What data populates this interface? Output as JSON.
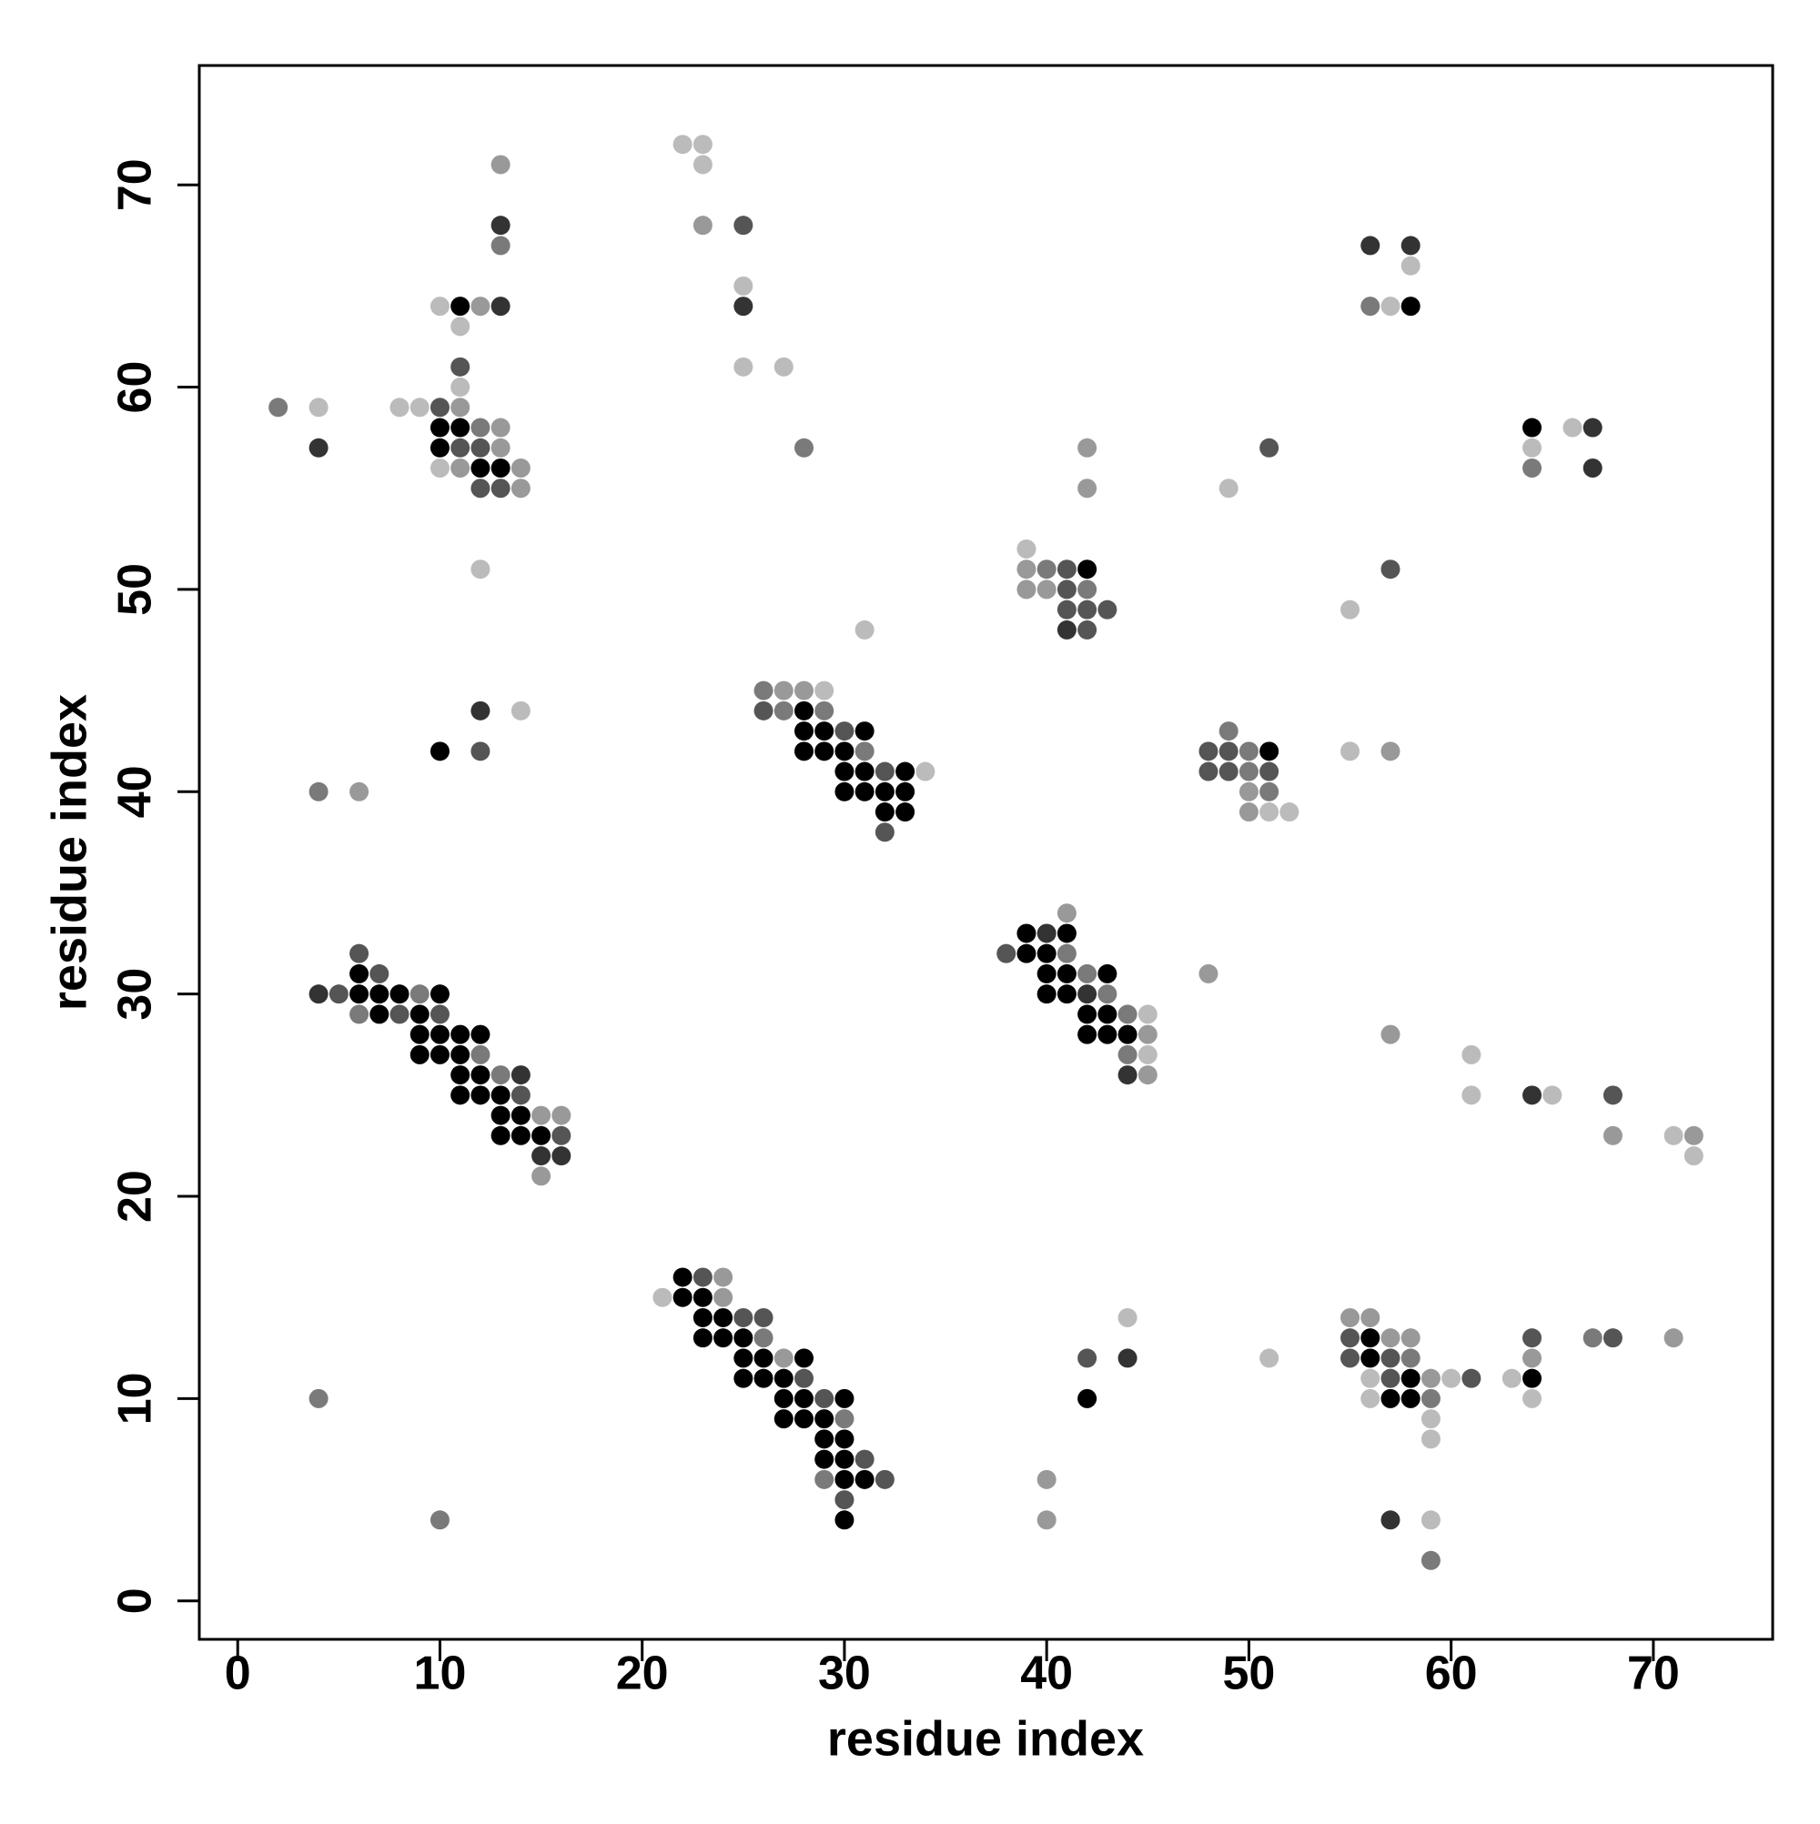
{
  "chart_data": {
    "type": "scatter",
    "xlabel": "residue index",
    "ylabel": "residue index",
    "xlim": [
      -1.9,
      75.9
    ],
    "ylim": [
      -1.9,
      75.9
    ],
    "xticks": [
      0,
      10,
      20,
      30,
      40,
      50,
      60,
      70
    ],
    "yticks": [
      0,
      10,
      20,
      30,
      40,
      50,
      60,
      70
    ],
    "x": [
      22,
      23,
      13,
      23,
      13,
      23,
      25,
      13,
      56,
      58,
      58,
      25,
      10,
      11,
      12,
      13,
      25,
      56,
      57,
      58,
      11,
      11,
      25,
      27,
      11,
      2,
      4,
      8,
      9,
      10,
      11,
      10,
      11,
      12,
      13,
      64,
      66,
      67,
      4,
      10,
      11,
      12,
      13,
      28,
      42,
      51,
      64,
      10,
      11,
      12,
      13,
      14,
      64,
      67,
      12,
      13,
      14,
      42,
      49,
      39,
      12,
      39,
      40,
      41,
      42,
      57,
      39,
      40,
      41,
      42,
      41,
      42,
      43,
      55,
      31,
      41,
      42,
      26,
      27,
      28,
      29,
      12,
      14,
      26,
      27,
      28,
      29,
      28,
      29,
      30,
      31,
      49,
      10,
      12,
      28,
      29,
      30,
      31,
      48,
      49,
      50,
      51,
      55,
      57,
      30,
      31,
      32,
      33,
      34,
      48,
      49,
      50,
      51,
      4,
      6,
      30,
      31,
      32,
      33,
      50,
      51,
      32,
      33,
      50,
      51,
      52,
      32,
      41,
      39,
      40,
      41,
      6,
      38,
      39,
      40,
      41,
      6,
      7,
      40,
      41,
      42,
      43,
      48,
      4,
      5,
      6,
      7,
      8,
      9,
      10,
      40,
      41,
      42,
      43,
      6,
      7,
      8,
      9,
      10,
      42,
      43,
      44,
      45,
      9,
      10,
      11,
      12,
      42,
      43,
      44,
      45,
      57,
      9,
      10,
      11,
      12,
      44,
      45,
      61,
      11,
      12,
      13,
      14,
      44,
      45,
      11,
      12,
      13,
      14,
      61,
      64,
      65,
      68,
      13,
      14,
      15,
      16,
      13,
      14,
      15,
      16,
      68,
      71,
      72,
      15,
      16,
      72,
      15,
      22,
      23,
      24,
      21,
      22,
      23,
      24,
      23,
      24,
      25,
      26,
      44,
      55,
      56,
      23,
      24,
      25,
      26,
      55,
      56,
      57,
      58,
      64,
      67,
      68,
      71,
      25,
      26,
      27,
      28,
      42,
      44,
      51,
      55,
      56,
      57,
      58,
      64,
      25,
      26,
      27,
      28,
      56,
      57,
      58,
      59,
      60,
      61,
      63,
      64,
      4,
      27,
      28,
      29,
      30,
      42,
      56,
      57,
      58,
      59,
      64,
      27,
      28,
      29,
      30,
      59,
      29,
      30,
      59,
      29,
      30,
      31,
      29,
      30,
      31,
      32,
      40,
      30,
      10,
      30,
      40,
      57,
      59,
      59
    ],
    "y": [
      72,
      72,
      71,
      71,
      68,
      68,
      68,
      67,
      67,
      67,
      66,
      65,
      64,
      64,
      64,
      64,
      64,
      64,
      64,
      64,
      63,
      61,
      61,
      61,
      60,
      59,
      59,
      59,
      59,
      59,
      59,
      58,
      58,
      58,
      58,
      58,
      58,
      58,
      57,
      57,
      57,
      57,
      57,
      57,
      57,
      57,
      57,
      56,
      56,
      56,
      56,
      56,
      56,
      56,
      55,
      55,
      55,
      55,
      55,
      52,
      51,
      51,
      51,
      51,
      51,
      51,
      50,
      50,
      50,
      50,
      49,
      49,
      49,
      49,
      48,
      48,
      48,
      45,
      45,
      45,
      45,
      44,
      44,
      44,
      44,
      44,
      44,
      43,
      43,
      43,
      43,
      43,
      42,
      42,
      42,
      42,
      42,
      42,
      42,
      42,
      42,
      42,
      42,
      42,
      41,
      41,
      41,
      41,
      41,
      41,
      41,
      41,
      41,
      40,
      40,
      40,
      40,
      40,
      40,
      40,
      40,
      39,
      39,
      39,
      39,
      39,
      38,
      34,
      33,
      33,
      33,
      32,
      32,
      32,
      32,
      32,
      31,
      31,
      31,
      31,
      31,
      31,
      31,
      30,
      30,
      30,
      30,
      30,
      30,
      30,
      30,
      30,
      30,
      30,
      29,
      29,
      29,
      29,
      29,
      29,
      29,
      29,
      29,
      28,
      28,
      28,
      28,
      28,
      28,
      28,
      28,
      28,
      27,
      27,
      27,
      27,
      27,
      27,
      27,
      26,
      26,
      26,
      26,
      26,
      26,
      25,
      25,
      25,
      25,
      25,
      25,
      25,
      25,
      24,
      24,
      24,
      24,
      23,
      23,
      23,
      23,
      23,
      23,
      23,
      22,
      22,
      22,
      21,
      16,
      16,
      16,
      15,
      15,
      15,
      15,
      14,
      14,
      14,
      14,
      14,
      14,
      14,
      13,
      13,
      13,
      13,
      13,
      13,
      13,
      13,
      13,
      13,
      13,
      13,
      12,
      12,
      12,
      12,
      12,
      12,
      12,
      12,
      12,
      12,
      12,
      12,
      11,
      11,
      11,
      11,
      11,
      11,
      11,
      11,
      11,
      11,
      11,
      11,
      10,
      10,
      10,
      10,
      10,
      10,
      10,
      10,
      10,
      10,
      10,
      9,
      9,
      9,
      9,
      9,
      8,
      8,
      8,
      7,
      7,
      7,
      6,
      6,
      6,
      6,
      6,
      5,
      4,
      4,
      4,
      4,
      4,
      2
    ],
    "colors": [
      "#bbbbbb",
      "#bbbbbb",
      "#999999",
      "#bbbbbb",
      "#333333",
      "#999999",
      "#555555",
      "#7a7a7a",
      "#333333",
      "#333333",
      "#bbbbbb",
      "#bbbbbb",
      "#bbbbbb",
      "#000000",
      "#999999",
      "#333333",
      "#333333",
      "#7a7a7a",
      "#bbbbbb",
      "#000000",
      "#bbbbbb",
      "#555555",
      "#bbbbbb",
      "#bbbbbb",
      "#bbbbbb",
      "#7a7a7a",
      "#bbbbbb",
      "#bbbbbb",
      "#bbbbbb",
      "#555555",
      "#999999",
      "#000000",
      "#000000",
      "#7a7a7a",
      "#999999",
      "#000000",
      "#bbbbbb",
      "#333333",
      "#333333",
      "#000000",
      "#555555",
      "#555555",
      "#999999",
      "#7a7a7a",
      "#999999",
      "#555555",
      "#bbbbbb",
      "#bbbbbb",
      "#999999",
      "#000000",
      "#000000",
      "#999999",
      "#7a7a7a",
      "#333333",
      "#555555",
      "#555555",
      "#999999",
      "#999999",
      "#bbbbbb",
      "#bbbbbb",
      "#bbbbbb",
      "#999999",
      "#7a7a7a",
      "#555555",
      "#000000",
      "#555555",
      "#999999",
      "#999999",
      "#555555",
      "#7a7a7a",
      "#555555",
      "#555555",
      "#555555",
      "#bbbbbb",
      "#bbbbbb",
      "#333333",
      "#555555",
      "#7a7a7a",
      "#999999",
      "#999999",
      "#bbbbbb",
      "#333333",
      "#bbbbbb",
      "#555555",
      "#7a7a7a",
      "#000000",
      "#7a7a7a",
      "#000000",
      "#000000",
      "#555555",
      "#000000",
      "#7a7a7a",
      "#000000",
      "#555555",
      "#000000",
      "#000000",
      "#000000",
      "#7a7a7a",
      "#555555",
      "#555555",
      "#7a7a7a",
      "#000000",
      "#bbbbbb",
      "#999999",
      "#000000",
      "#000000",
      "#555555",
      "#000000",
      "#bbbbbb",
      "#555555",
      "#555555",
      "#7a7a7a",
      "#555555",
      "#7a7a7a",
      "#999999",
      "#000000",
      "#000000",
      "#000000",
      "#000000",
      "#999999",
      "#7a7a7a",
      "#000000",
      "#000000",
      "#999999",
      "#bbbbbb",
      "#bbbbbb",
      "#555555",
      "#999999",
      "#000000",
      "#333333",
      "#000000",
      "#555555",
      "#555555",
      "#000000",
      "#000000",
      "#7a7a7a",
      "#000000",
      "#555555",
      "#000000",
      "#000000",
      "#7a7a7a",
      "#000000",
      "#999999",
      "#333333",
      "#555555",
      "#000000",
      "#000000",
      "#000000",
      "#7a7a7a",
      "#000000",
      "#000000",
      "#000000",
      "#333333",
      "#7a7a7a",
      "#7a7a7a",
      "#000000",
      "#555555",
      "#000000",
      "#555555",
      "#000000",
      "#000000",
      "#7a7a7a",
      "#bbbbbb",
      "#000000",
      "#000000",
      "#000000",
      "#000000",
      "#000000",
      "#000000",
      "#000000",
      "#999999",
      "#999999",
      "#000000",
      "#000000",
      "#000000",
      "#7a7a7a",
      "#7a7a7a",
      "#bbbbbb",
      "#bbbbbb",
      "#000000",
      "#000000",
      "#7a7a7a",
      "#333333",
      "#333333",
      "#999999",
      "#000000",
      "#000000",
      "#000000",
      "#555555",
      "#bbbbbb",
      "#333333",
      "#bbbbbb",
      "#555555",
      "#000000",
      "#000000",
      "#999999",
      "#999999",
      "#000000",
      "#000000",
      "#000000",
      "#555555",
      "#999999",
      "#bbbbbb",
      "#999999",
      "#333333",
      "#333333",
      "#bbbbbb",
      "#999999",
      "#000000",
      "#555555",
      "#999999",
      "#bbbbbb",
      "#000000",
      "#000000",
      "#999999",
      "#000000",
      "#000000",
      "#555555",
      "#555555",
      "#bbbbbb",
      "#999999",
      "#999999",
      "#000000",
      "#000000",
      "#000000",
      "#7a7a7a",
      "#555555",
      "#000000",
      "#999999",
      "#999999",
      "#555555",
      "#7a7a7a",
      "#555555",
      "#999999",
      "#000000",
      "#000000",
      "#999999",
      "#000000",
      "#555555",
      "#333333",
      "#bbbbbb",
      "#555555",
      "#000000",
      "#555555",
      "#7a7a7a",
      "#999999",
      "#000000",
      "#000000",
      "#000000",
      "#555555",
      "#bbbbbb",
      "#555555",
      "#000000",
      "#999999",
      "#bbbbbb",
      "#555555",
      "#bbbbbb",
      "#000000",
      "#7a7a7a",
      "#000000",
      "#000000",
      "#555555",
      "#000000",
      "#000000",
      "#bbbbbb",
      "#000000",
      "#000000",
      "#7a7a7a",
      "#bbbbbb",
      "#000000",
      "#000000",
      "#000000",
      "#7a7a7a",
      "#bbbbbb",
      "#000000",
      "#000000",
      "#bbbbbb",
      "#000000",
      "#000000",
      "#555555",
      "#7a7a7a",
      "#000000",
      "#000000",
      "#555555",
      "#999999",
      "#555555",
      "#7a7a7a",
      "#000000",
      "#999999",
      "#333333",
      "#bbbbbb",
      "#7a7a7a"
    ]
  }
}
